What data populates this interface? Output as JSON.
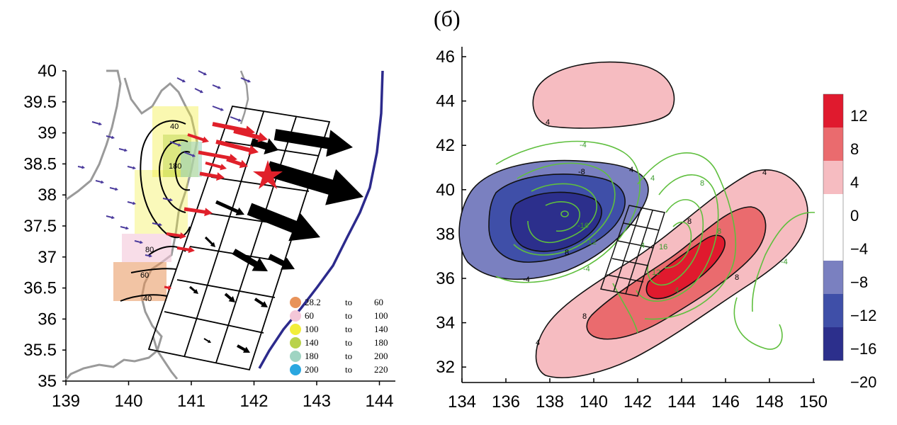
{
  "panel_b_label": "(б)",
  "chart_data": [
    {
      "type": "map",
      "xlabel": "",
      "ylabel": "",
      "x_ticks": [
        "139",
        "140",
        "141",
        "142",
        "143",
        "144"
      ],
      "y_ticks": [
        "40",
        "39.5",
        "39",
        "38.5",
        "38",
        "37.5",
        "37",
        "36.5",
        "36",
        "35.5",
        "35"
      ],
      "xlim": [
        139,
        144.3
      ],
      "ylim": [
        35,
        40
      ],
      "contour_labels": [
        "40",
        "180",
        "80",
        "60",
        "40"
      ],
      "legend": [
        {
          "from": "28.2",
          "to_word": "to",
          "to": "60",
          "color": "#e8935a"
        },
        {
          "from": "60",
          "to_word": "to",
          "to": "100",
          "color": "#f4c7d8"
        },
        {
          "from": "100",
          "to_word": "to",
          "to": "140",
          "color": "#f2ee3a"
        },
        {
          "from": "140",
          "to_word": "to",
          "to": "180",
          "color": "#b9d24a"
        },
        {
          "from": "180",
          "to_word": "to",
          "to": "200",
          "color": "#9fd4c2"
        },
        {
          "from": "200",
          "to_word": "to",
          "to": "220",
          "color": "#2aa7e0"
        }
      ]
    },
    {
      "type": "heatmap",
      "xlabel": "",
      "ylabel": "",
      "x_ticks": [
        "134",
        "136",
        "138",
        "140",
        "142",
        "144",
        "146",
        "148",
        "150"
      ],
      "y_ticks": [
        "46",
        "44",
        "42",
        "40",
        "38",
        "36",
        "34",
        "32"
      ],
      "xlim": [
        134,
        150
      ],
      "ylim": [
        31,
        46.5
      ],
      "colorbar": {
        "labels": [
          "12",
          "8",
          "4",
          "0",
          "−4",
          "−8",
          "−12",
          "−16",
          "−20"
        ],
        "colors": [
          "#e01a2e",
          "#ea6b6e",
          "#f6bcc1",
          "#ffffff",
          "#ffffff",
          "#7a80c0",
          "#3f4fa8",
          "#2c2f8c"
        ]
      },
      "contour_labels_black": [
        "4",
        "4",
        "-8",
        "8",
        "8",
        "8",
        "-4",
        "8",
        "4",
        "4"
      ],
      "contour_labels_green": [
        "-4",
        "4",
        "8",
        "-16",
        "-12",
        "-4",
        "4",
        "16",
        "12",
        "8",
        "4",
        "-4"
      ]
    }
  ]
}
